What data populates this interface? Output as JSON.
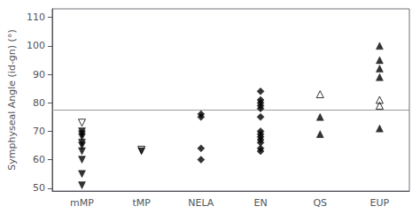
{
  "chart_data": {
    "type": "scatter",
    "ylabel": "Symphyseal Angle (id-gn) (°)",
    "categories": [
      "mMP",
      "tMP",
      "NELA",
      "EN",
      "QS",
      "EUP"
    ],
    "series": [
      {
        "marker": "triangle_down",
        "color": "black",
        "x": [
          "mMP",
          "mMP",
          "mMP",
          "mMP",
          "mMP",
          "mMP",
          "mMP",
          "mMP",
          "mMP"
        ],
        "values": [
          51,
          55,
          60,
          63,
          65,
          66,
          68,
          69,
          70
        ]
      },
      {
        "marker": "triangle_down_open",
        "color": "black",
        "x": [
          "mMP"
        ],
        "values": [
          73
        ]
      },
      {
        "marker": "triangle_down",
        "color": "black",
        "x": [
          "tMP"
        ],
        "values": [
          63
        ]
      },
      {
        "marker": "triangle_down_open",
        "color": "black",
        "x": [
          "tMP"
        ],
        "values": [
          63.5
        ]
      },
      {
        "marker": "diamond",
        "color": "black",
        "x": [
          "NELA",
          "NELA",
          "NELA",
          "NELA"
        ],
        "values": [
          60,
          64,
          75,
          76
        ]
      },
      {
        "marker": "diamond",
        "color": "black",
        "x": [
          "EN",
          "EN",
          "EN",
          "EN",
          "EN",
          "EN",
          "EN",
          "EN",
          "EN",
          "EN",
          "EN",
          "EN",
          "EN"
        ],
        "values": [
          63,
          64,
          66,
          67,
          68,
          69,
          70,
          75,
          78,
          79,
          80,
          81,
          84
        ]
      },
      {
        "marker": "triangle_up",
        "color": "black",
        "x": [
          "QS",
          "QS"
        ],
        "values": [
          69,
          75
        ]
      },
      {
        "marker": "triangle_up_open",
        "color": "black",
        "x": [
          "QS"
        ],
        "values": [
          83
        ]
      },
      {
        "marker": "triangle_up",
        "color": "black",
        "x": [
          "EUP",
          "EUP",
          "EUP",
          "EUP",
          "EUP"
        ],
        "values": [
          71,
          89,
          92,
          95,
          100
        ]
      },
      {
        "marker": "triangle_up_open",
        "color": "black",
        "x": [
          "EUP",
          "EUP"
        ],
        "values": [
          79,
          81
        ]
      }
    ],
    "reference_line": {
      "y": 77.5,
      "color": "#999999"
    },
    "ylim": [
      49,
      113
    ],
    "yticks": [
      50,
      60,
      70,
      80,
      90,
      100,
      110
    ],
    "grid": false
  }
}
